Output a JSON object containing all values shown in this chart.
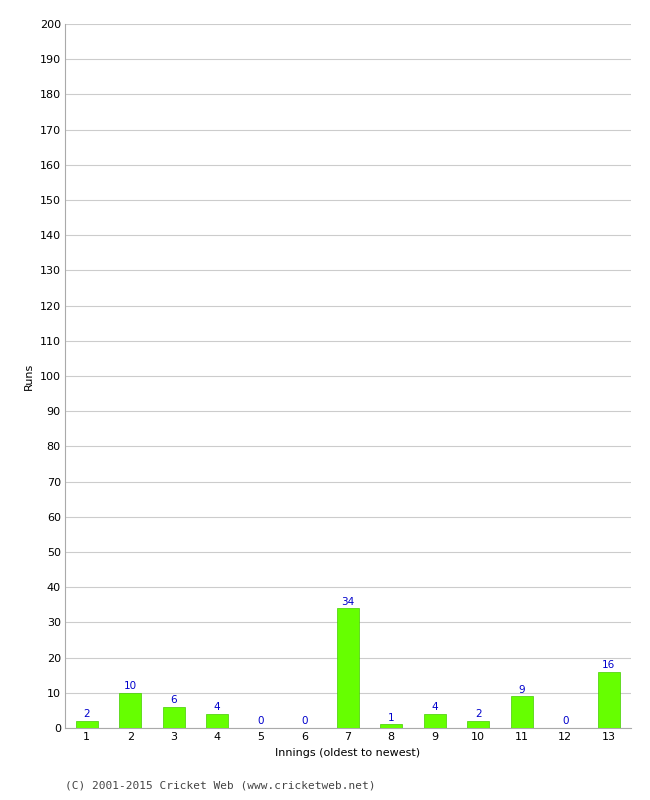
{
  "innings": [
    1,
    2,
    3,
    4,
    5,
    6,
    7,
    8,
    9,
    10,
    11,
    12,
    13
  ],
  "runs": [
    2,
    10,
    6,
    4,
    0,
    0,
    34,
    1,
    4,
    2,
    9,
    0,
    16
  ],
  "bar_color": "#66ff00",
  "bar_edge_color": "#44cc00",
  "label_color": "#0000cc",
  "ylabel": "Runs",
  "xlabel": "Innings (oldest to newest)",
  "ylim": [
    0,
    200
  ],
  "yticks": [
    0,
    10,
    20,
    30,
    40,
    50,
    60,
    70,
    80,
    90,
    100,
    110,
    120,
    130,
    140,
    150,
    160,
    170,
    180,
    190,
    200
  ],
  "footer": "(C) 2001-2015 Cricket Web (www.cricketweb.net)",
  "background_color": "#ffffff",
  "grid_color": "#cccccc",
  "label_fontsize": 7.5,
  "axis_tick_fontsize": 8,
  "axis_label_fontsize": 8,
  "footer_fontsize": 8
}
